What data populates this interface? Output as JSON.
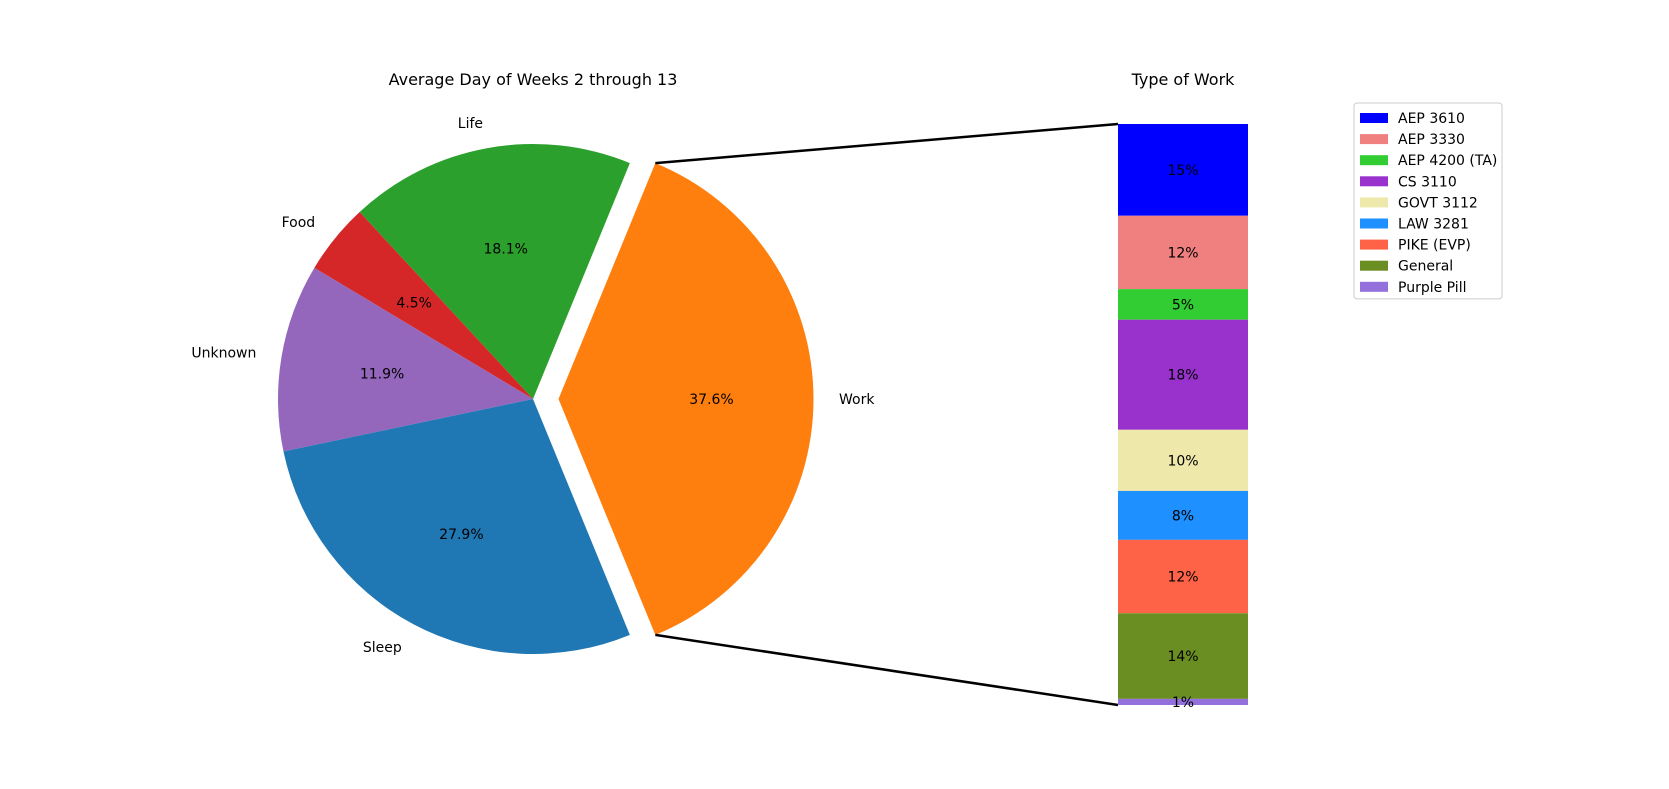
{
  "chart_data": [
    {
      "type": "pie",
      "title": "Average Day of Weeks 2 through 13",
      "slices": [
        {
          "label": "Work",
          "value": 37.6,
          "pct_label": "37.6%",
          "color": "#ff7f0e",
          "exploded": true
        },
        {
          "label": "Life",
          "value": 18.1,
          "pct_label": "18.1%",
          "color": "#2ca02c",
          "exploded": false
        },
        {
          "label": "Food",
          "value": 4.5,
          "pct_label": "4.5%",
          "color": "#d62728",
          "exploded": false
        },
        {
          "label": "Unknown",
          "value": 11.9,
          "pct_label": "11.9%",
          "color": "#9467bd",
          "exploded": false
        },
        {
          "label": "Sleep",
          "value": 27.9,
          "pct_label": "27.9%",
          "color": "#1f77b4",
          "exploded": false
        }
      ]
    },
    {
      "type": "bar",
      "stacked": true,
      "title": "Type of Work",
      "segments": [
        {
          "name": "AEP 3610",
          "value": 15,
          "pct_label": "15%",
          "color": "#0000ff"
        },
        {
          "name": "AEP 3330",
          "value": 12,
          "pct_label": "12%",
          "color": "#f08080"
        },
        {
          "name": "AEP 4200 (TA)",
          "value": 5,
          "pct_label": "5%",
          "color": "#32cd32"
        },
        {
          "name": "CS 3110",
          "value": 18,
          "pct_label": "18%",
          "color": "#9932cc"
        },
        {
          "name": "GOVT 3112",
          "value": 10,
          "pct_label": "10%",
          "color": "#eee8aa"
        },
        {
          "name": "LAW 3281",
          "value": 8,
          "pct_label": "8%",
          "color": "#1e90ff"
        },
        {
          "name": "PIKE (EVP)",
          "value": 12,
          "pct_label": "12%",
          "color": "#ff6347"
        },
        {
          "name": "General",
          "value": 14,
          "pct_label": "14%",
          "color": "#6b8e23"
        },
        {
          "name": "Purple Pill",
          "value": 1,
          "pct_label": "1%",
          "color": "#9370db"
        }
      ],
      "legend": {
        "placement": "top-right"
      }
    }
  ]
}
